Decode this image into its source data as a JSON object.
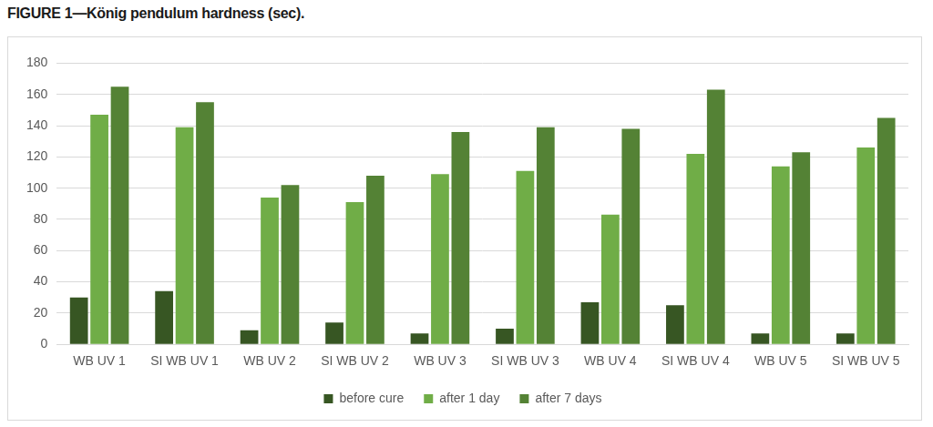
{
  "chart_data": {
    "type": "bar",
    "title": "FIGURE 1—König pendulum hardness (sec).",
    "categories": [
      "WB UV 1",
      "SI WB UV 1",
      "WB UV 2",
      "SI WB UV 2",
      "WB UV 3",
      "SI WB UV 3",
      "WB UV 4",
      "SI WB UV 4",
      "WB UV 5",
      "SI WB UV 5"
    ],
    "series": [
      {
        "name": "before cure",
        "color": "#375623",
        "values": [
          30,
          34,
          9,
          14,
          7,
          10,
          27,
          25,
          7,
          7
        ]
      },
      {
        "name": "after 1 day",
        "color": "#70ad47",
        "values": [
          147,
          139,
          94,
          91,
          109,
          111,
          83,
          122,
          114,
          126
        ]
      },
      {
        "name": "after 7 days",
        "color": "#548235",
        "values": [
          165,
          155,
          102,
          108,
          136,
          139,
          138,
          163,
          123,
          145
        ]
      }
    ],
    "ylim": [
      0,
      180
    ],
    "yticks": [
      0,
      20,
      40,
      60,
      80,
      100,
      120,
      140,
      160,
      180
    ],
    "grid": true,
    "legend": "bottom"
  }
}
